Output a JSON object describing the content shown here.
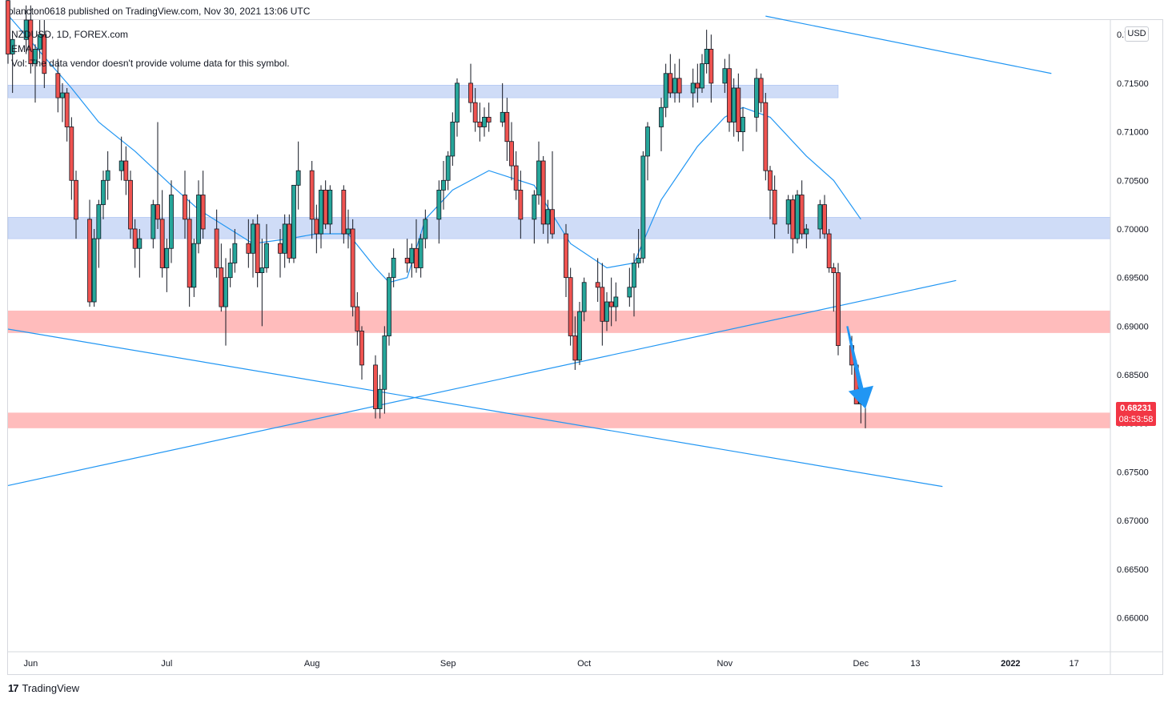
{
  "header": {
    "published": "plancton0618 published on TradingView.com, Nov 30, 2021 13:06 UTC"
  },
  "legend": {
    "symbol_line": "NZDUSD, 1D, FOREX.com",
    "indicator": "EMA",
    "volume_note": "Vol: The data vendor doesn't provide volume data for this symbol."
  },
  "currency_button": "USD",
  "last_price": {
    "price": "0.68231",
    "countdown": "08:53:58",
    "color": "#f23645"
  },
  "footer": {
    "logo": "17",
    "brand": "TradingView"
  },
  "colors": {
    "up": "#26a69a",
    "down": "#ef5350",
    "wick": "#131722",
    "ema": "#2196f3",
    "resistance_zone": "#cfdcf7",
    "support_zone": "#ffbcbc",
    "arrow": "#2196f3"
  },
  "chart_data": {
    "type": "candlestick",
    "symbol": "NZDUSD",
    "interval": "1D",
    "ylim": [
      0.6565,
      0.7215
    ],
    "y_ticks": [
      "0.72000",
      "0.71500",
      "0.71000",
      "0.70500",
      "0.70000",
      "0.69500",
      "0.69000",
      "0.68500",
      "0.68000",
      "0.67500",
      "0.67000",
      "0.66500",
      "0.66000"
    ],
    "x_ticks": [
      "Jun",
      "Jul",
      "Aug",
      "Sep",
      "Oct",
      "Nov",
      "Dec",
      "13",
      "2022",
      "17"
    ],
    "x_tick_dates": [
      "2021-06-01",
      "2021-07-01",
      "2021-08-02",
      "2021-09-01",
      "2021-10-01",
      "2021-11-01",
      "2021-12-01",
      "2021-12-13",
      "2022-01-03",
      "2022-01-17"
    ],
    "candles_daily_start": "2021-05-27",
    "candles": [
      [
        0.7235,
        0.725,
        0.717,
        0.718
      ],
      [
        0.718,
        0.72,
        0.714,
        0.7195
      ],
      [
        0.7195,
        0.723,
        0.718,
        0.7215
      ],
      [
        0.7215,
        0.723,
        0.716,
        0.717
      ],
      [
        0.717,
        0.719,
        0.713,
        0.7185
      ],
      [
        0.7185,
        0.7215,
        0.7175,
        0.72
      ],
      [
        0.72,
        0.7215,
        0.7145,
        0.716
      ],
      [
        0.716,
        0.7175,
        0.712,
        0.7135
      ],
      [
        0.7135,
        0.715,
        0.711,
        0.714
      ],
      [
        0.714,
        0.7145,
        0.709,
        0.7105
      ],
      [
        0.7105,
        0.7115,
        0.703,
        0.705
      ],
      [
        0.705,
        0.706,
        0.699,
        0.701
      ],
      [
        0.701,
        0.703,
        0.692,
        0.6925
      ],
      [
        0.6925,
        0.7,
        0.692,
        0.699
      ],
      [
        0.699,
        0.703,
        0.696,
        0.7025
      ],
      [
        0.7025,
        0.706,
        0.701,
        0.705
      ],
      [
        0.705,
        0.708,
        0.703,
        0.706
      ],
      [
        0.706,
        0.7095,
        0.705,
        0.707
      ],
      [
        0.707,
        0.7085,
        0.7035,
        0.705
      ],
      [
        0.705,
        0.706,
        0.699,
        0.7
      ],
      [
        0.7,
        0.701,
        0.696,
        0.698
      ],
      [
        0.698,
        0.7,
        0.695,
        0.699
      ],
      [
        0.699,
        0.703,
        0.698,
        0.7025
      ],
      [
        0.7025,
        0.711,
        0.7,
        0.701
      ],
      [
        0.701,
        0.704,
        0.695,
        0.696
      ],
      [
        0.696,
        0.699,
        0.6935,
        0.698
      ],
      [
        0.698,
        0.705,
        0.6965,
        0.7035
      ],
      [
        0.7035,
        0.706,
        0.699,
        0.701
      ],
      [
        0.701,
        0.703,
        0.692,
        0.694
      ],
      [
        0.694,
        0.699,
        0.693,
        0.6985
      ],
      [
        0.6985,
        0.705,
        0.6975,
        0.7035
      ],
      [
        0.7035,
        0.706,
        0.699,
        0.7
      ],
      [
        0.7,
        0.702,
        0.695,
        0.696
      ],
      [
        0.696,
        0.6985,
        0.6915,
        0.692
      ],
      [
        0.692,
        0.697,
        0.688,
        0.695
      ],
      [
        0.695,
        0.698,
        0.694,
        0.6965
      ],
      [
        0.6965,
        0.7,
        0.6955,
        0.6985
      ],
      [
        0.6985,
        0.701,
        0.696,
        0.6975
      ],
      [
        0.6975,
        0.701,
        0.695,
        0.7005
      ],
      [
        0.7005,
        0.7015,
        0.694,
        0.6955
      ],
      [
        0.6955,
        0.699,
        0.69,
        0.696
      ],
      [
        0.696,
        0.7005,
        0.6955,
        0.6985
      ],
      [
        0.6985,
        0.7,
        0.695,
        0.6975
      ],
      [
        0.6975,
        0.7015,
        0.696,
        0.7005
      ],
      [
        0.7005,
        0.7015,
        0.6965,
        0.697
      ],
      [
        0.697,
        0.7045,
        0.6965,
        0.7045
      ],
      [
        0.7045,
        0.709,
        0.702,
        0.706
      ],
      [
        0.706,
        0.707,
        0.699,
        0.701
      ],
      [
        0.701,
        0.7025,
        0.6975,
        0.6995
      ],
      [
        0.6995,
        0.7045,
        0.698,
        0.704
      ],
      [
        0.704,
        0.705,
        0.7,
        0.7005
      ],
      [
        0.7005,
        0.7045,
        0.6995,
        0.704
      ],
      [
        0.704,
        0.7045,
        0.6985,
        0.6995
      ],
      [
        0.6995,
        0.702,
        0.698,
        0.7
      ],
      [
        0.7,
        0.701,
        0.691,
        0.692
      ],
      [
        0.692,
        0.6935,
        0.688,
        0.6895
      ],
      [
        0.6895,
        0.69,
        0.6845,
        0.686
      ],
      [
        0.686,
        0.687,
        0.6805,
        0.6815
      ],
      [
        0.6815,
        0.685,
        0.6805,
        0.6835
      ],
      [
        0.6835,
        0.69,
        0.681,
        0.689
      ],
      [
        0.689,
        0.6955,
        0.688,
        0.695
      ],
      [
        0.695,
        0.698,
        0.694,
        0.697
      ],
      [
        0.697,
        0.699,
        0.6955,
        0.6965
      ],
      [
        0.6965,
        0.6985,
        0.695,
        0.698
      ],
      [
        0.698,
        0.701,
        0.6955,
        0.696
      ],
      [
        0.696,
        0.6995,
        0.695,
        0.699
      ],
      [
        0.699,
        0.702,
        0.698,
        0.701
      ],
      [
        0.701,
        0.705,
        0.6985,
        0.704
      ],
      [
        0.704,
        0.707,
        0.702,
        0.705
      ],
      [
        0.705,
        0.708,
        0.704,
        0.7075
      ],
      [
        0.7075,
        0.712,
        0.7065,
        0.711
      ],
      [
        0.711,
        0.7155,
        0.7095,
        0.715
      ],
      [
        0.715,
        0.717,
        0.712,
        0.713
      ],
      [
        0.713,
        0.7145,
        0.71,
        0.711
      ],
      [
        0.711,
        0.713,
        0.709,
        0.7105
      ],
      [
        0.7105,
        0.7125,
        0.7095,
        0.7115
      ],
      [
        0.7115,
        0.713,
        0.71,
        0.711
      ],
      [
        0.711,
        0.715,
        0.7105,
        0.712
      ],
      [
        0.712,
        0.7135,
        0.707,
        0.709
      ],
      [
        0.709,
        0.711,
        0.705,
        0.7065
      ],
      [
        0.7065,
        0.708,
        0.703,
        0.704
      ],
      [
        0.704,
        0.706,
        0.699,
        0.701
      ],
      [
        0.701,
        0.704,
        0.6985,
        0.7035
      ],
      [
        0.7035,
        0.709,
        0.7025,
        0.707
      ],
      [
        0.707,
        0.7075,
        0.6995,
        0.7005
      ],
      [
        0.7005,
        0.703,
        0.6985,
        0.702
      ],
      [
        0.702,
        0.708,
        0.699,
        0.6995
      ],
      [
        0.6995,
        0.7005,
        0.693,
        0.695
      ],
      [
        0.695,
        0.696,
        0.688,
        0.689
      ],
      [
        0.689,
        0.691,
        0.6855,
        0.6865
      ],
      [
        0.6865,
        0.6925,
        0.686,
        0.6915
      ],
      [
        0.6915,
        0.695,
        0.6905,
        0.6945
      ],
      [
        0.6945,
        0.697,
        0.6925,
        0.694
      ],
      [
        0.694,
        0.6965,
        0.688,
        0.6905
      ],
      [
        0.6905,
        0.6935,
        0.6895,
        0.6925
      ],
      [
        0.6925,
        0.695,
        0.69,
        0.692
      ],
      [
        0.692,
        0.6945,
        0.6905,
        0.693
      ],
      [
        0.693,
        0.696,
        0.692,
        0.694
      ],
      [
        0.694,
        0.6975,
        0.691,
        0.6965
      ],
      [
        0.6965,
        0.7,
        0.696,
        0.697
      ],
      [
        0.697,
        0.708,
        0.6965,
        0.7075
      ],
      [
        0.7075,
        0.711,
        0.705,
        0.7105
      ],
      [
        0.7105,
        0.7135,
        0.708,
        0.7125
      ],
      [
        0.7125,
        0.717,
        0.7115,
        0.716
      ],
      [
        0.716,
        0.718,
        0.7135,
        0.714
      ],
      [
        0.714,
        0.717,
        0.713,
        0.7155
      ],
      [
        0.7155,
        0.7175,
        0.713,
        0.714
      ],
      [
        0.714,
        0.7165,
        0.7125,
        0.715
      ],
      [
        0.715,
        0.717,
        0.713,
        0.7145
      ],
      [
        0.7145,
        0.718,
        0.714,
        0.717
      ],
      [
        0.717,
        0.7205,
        0.716,
        0.7185
      ],
      [
        0.7185,
        0.72,
        0.713,
        0.715
      ],
      [
        0.715,
        0.7175,
        0.714,
        0.7165
      ],
      [
        0.7165,
        0.718,
        0.71,
        0.711
      ],
      [
        0.711,
        0.7155,
        0.7095,
        0.7145
      ],
      [
        0.7145,
        0.716,
        0.709,
        0.71
      ],
      [
        0.71,
        0.7125,
        0.708,
        0.7115
      ],
      [
        0.7115,
        0.7165,
        0.71,
        0.7155
      ],
      [
        0.7155,
        0.716,
        0.712,
        0.713
      ],
      [
        0.713,
        0.714,
        0.705,
        0.706
      ],
      [
        0.706,
        0.7065,
        0.701,
        0.704
      ],
      [
        0.704,
        0.7055,
        0.699,
        0.7005
      ],
      [
        0.7005,
        0.7035,
        0.6995,
        0.703
      ],
      [
        0.703,
        0.7035,
        0.6975,
        0.699
      ],
      [
        0.699,
        0.704,
        0.6985,
        0.7035
      ],
      [
        0.7035,
        0.705,
        0.699,
        0.6995
      ],
      [
        0.6995,
        0.7005,
        0.698,
        0.7
      ],
      [
        0.7,
        0.703,
        0.699,
        0.7025
      ],
      [
        0.7025,
        0.7035,
        0.699,
        0.6995
      ],
      [
        0.6995,
        0.7,
        0.6955,
        0.696
      ],
      [
        0.696,
        0.6965,
        0.6915,
        0.6955
      ],
      [
        0.6955,
        0.6965,
        0.687,
        0.688
      ],
      [
        0.688,
        0.689,
        0.685,
        0.686
      ],
      [
        0.686,
        0.6865,
        0.682,
        0.682
      ],
      [
        0.682,
        0.684,
        0.68,
        0.6825
      ],
      [
        0.6825,
        0.6835,
        0.6795,
        0.68231
      ]
    ],
    "ema": [
      [
        0,
        0.722
      ],
      [
        10,
        0.7145
      ],
      [
        14,
        0.711
      ],
      [
        20,
        0.708
      ],
      [
        26,
        0.7045
      ],
      [
        30,
        0.702
      ],
      [
        38,
        0.6985
      ],
      [
        44,
        0.699
      ],
      [
        48,
        0.6995
      ],
      [
        53,
        0.6995
      ],
      [
        57,
        0.696
      ],
      [
        60,
        0.6945
      ],
      [
        62,
        0.695
      ],
      [
        66,
        0.701
      ],
      [
        70,
        0.704
      ],
      [
        76,
        0.706
      ],
      [
        82,
        0.7045
      ],
      [
        88,
        0.6985
      ],
      [
        94,
        0.696
      ],
      [
        98,
        0.6965
      ],
      [
        102,
        0.703
      ],
      [
        108,
        0.7085
      ],
      [
        112,
        0.7115
      ],
      [
        116,
        0.7125
      ],
      [
        120,
        0.7115
      ],
      [
        126,
        0.7075
      ],
      [
        130,
        0.705
      ],
      [
        134,
        0.701
      ],
      [
        137,
        0.697
      ]
    ],
    "zones": [
      {
        "kind": "resistance",
        "from": 0.7135,
        "to": 0.7148,
        "x_end": "2021-11-26"
      },
      {
        "kind": "resistance",
        "from": 0.699,
        "to": 0.7012,
        "x_end": "full"
      },
      {
        "kind": "support",
        "from": 0.6893,
        "to": 0.6916,
        "x_end": "full"
      },
      {
        "kind": "support",
        "from": 0.6795,
        "to": 0.6811,
        "x_end": "full"
      }
    ],
    "trendlines": [
      {
        "points": [
          [
            "2021-05-27",
            0.6897
          ],
          [
            "2021-12-19",
            0.6735
          ]
        ]
      },
      {
        "points": [
          [
            "2021-05-27",
            0.6736
          ],
          [
            "2021-12-22",
            0.6947
          ]
        ]
      },
      {
        "points": [
          [
            "2021-11-10",
            0.7219
          ],
          [
            "2022-01-12",
            0.716
          ]
        ]
      }
    ],
    "annotation_arrow": {
      "from": [
        "2021-11-28",
        0.69
      ],
      "to": [
        "2021-12-02",
        0.6815
      ],
      "direction": "down"
    }
  }
}
